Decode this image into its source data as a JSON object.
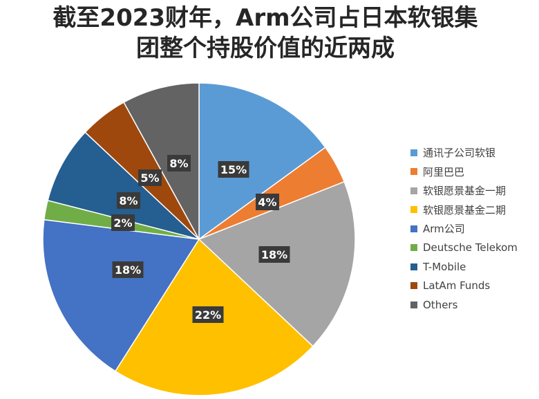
{
  "chart_data": {
    "type": "pie",
    "title_lines": [
      "截至2023财年，Arm公司占日本软银集",
      "团整个持股价值的近两成"
    ],
    "labels": [
      "通讯子公司软银",
      "阿里巴巴",
      "软银愿景基金一期",
      "软银愿景基金二期",
      "Arm公司",
      "Deutsche Telekom",
      "T-Mobile",
      "LatAm Funds",
      "Others"
    ],
    "values": [
      15,
      4,
      18,
      22,
      18,
      2,
      8,
      5,
      8
    ],
    "data_labels": [
      "15%",
      "4%",
      "18%",
      "22%",
      "18%",
      "2%",
      "8%",
      "5%",
      "8%"
    ],
    "colors": [
      "#5B9BD5",
      "#ED7D31",
      "#A5A5A5",
      "#FFC000",
      "#4472C4",
      "#70AD47",
      "#255E91",
      "#9E480E",
      "#636363"
    ],
    "legend_position": "right",
    "start_angle_deg": 0,
    "direction": "clockwise"
  }
}
